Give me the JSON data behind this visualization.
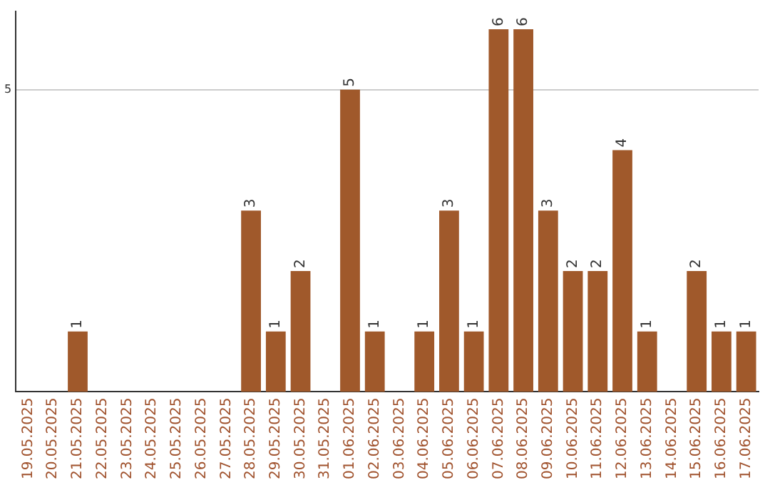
{
  "chart_data": {
    "type": "bar",
    "categories": [
      "19.05.2025",
      "20.05.2025",
      "21.05.2025",
      "22.05.2025",
      "23.05.2025",
      "24.05.2025",
      "25.05.2025",
      "26.05.2025",
      "27.05.2025",
      "28.05.2025",
      "29.05.2025",
      "30.05.2025",
      "31.05.2025",
      "01.06.2025",
      "02.06.2025",
      "03.06.2025",
      "04.06.2025",
      "05.06.2025",
      "06.06.2025",
      "07.06.2025",
      "08.06.2025",
      "09.06.2025",
      "10.06.2025",
      "11.06.2025",
      "12.06.2025",
      "13.06.2025",
      "14.06.2025",
      "15.06.2025",
      "16.06.2025",
      "17.06.2025"
    ],
    "values": [
      0,
      0,
      1,
      0,
      0,
      0,
      0,
      0,
      0,
      3,
      1,
      2,
      0,
      5,
      1,
      0,
      1,
      3,
      1,
      6,
      6,
      3,
      2,
      2,
      4,
      1,
      0,
      2,
      1,
      1
    ],
    "value_labels": [
      null,
      null,
      "1",
      null,
      null,
      null,
      null,
      null,
      null,
      "3",
      "1",
      "2",
      null,
      "5",
      "1",
      null,
      "1",
      "3",
      "1",
      "6",
      "6",
      "3",
      "2",
      "2",
      "4",
      "1",
      null,
      "2",
      "1",
      "1"
    ],
    "color": "#a0592b",
    "ylim": [
      0,
      6.3
    ],
    "yticks": [
      5
    ],
    "grid": "y",
    "legend": false
  }
}
